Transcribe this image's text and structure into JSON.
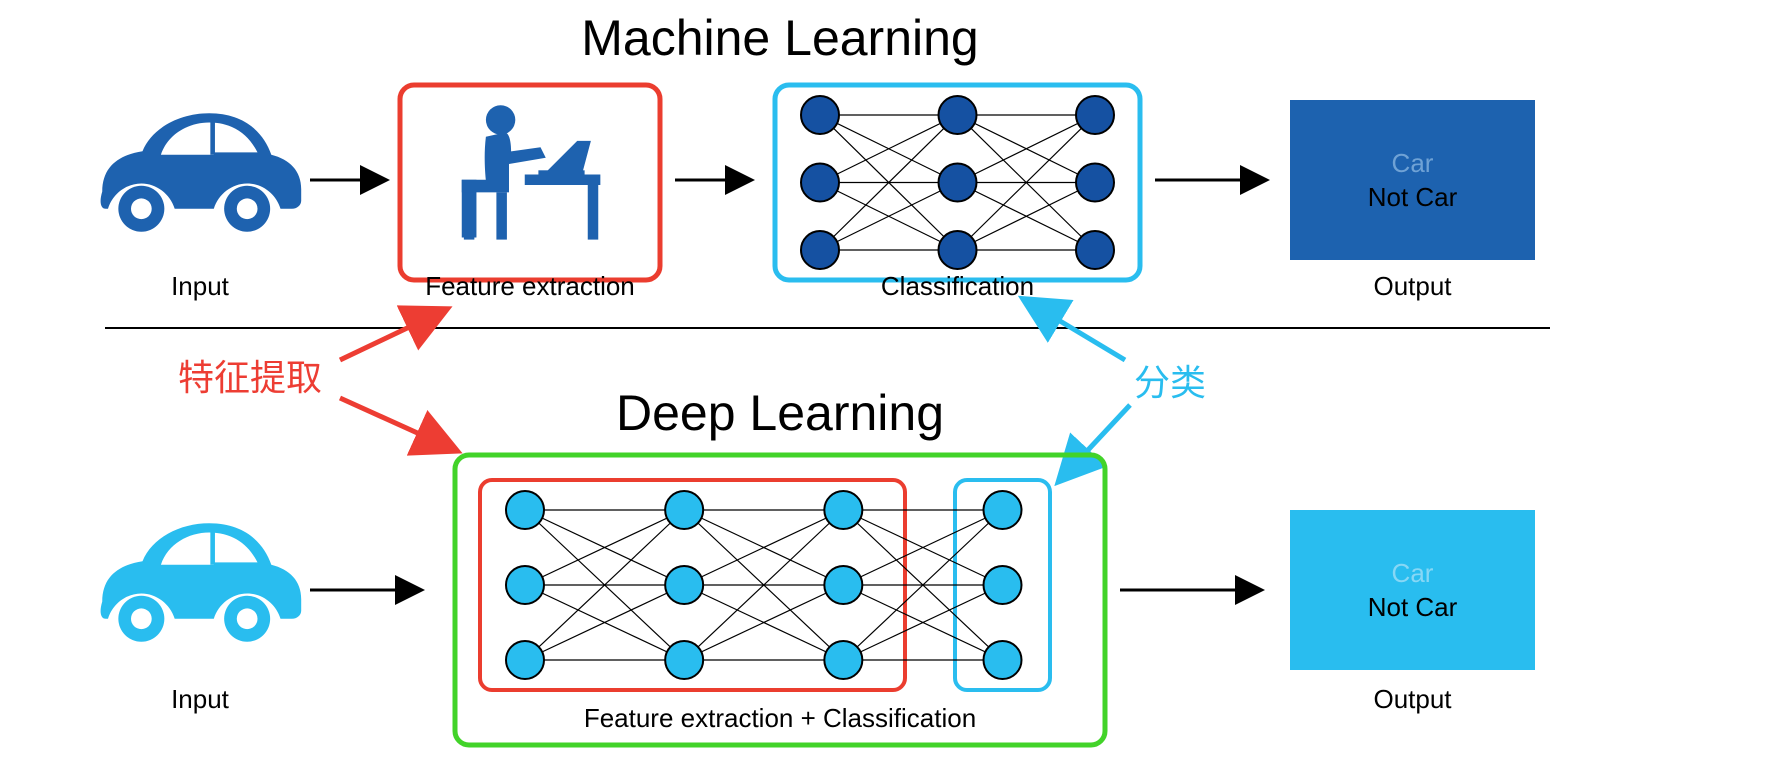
{
  "ml": {
    "title": "Machine Learning",
    "input_label": "Input",
    "feature_extraction_label": "Feature extraction",
    "classification_label": "Classification",
    "output_label": "Output",
    "output_line1": "Car",
    "output_line2": "Not Car",
    "car_color": "#1e62af",
    "net_node_color": "#1551a2",
    "output_box_color": "#1d62af",
    "output_text1_color": "#6fa2d5",
    "output_text2_color": "#000000",
    "feature_box_border": "#eb3d2f",
    "classification_box_border": "#2abdef",
    "box_border_width": 5,
    "box_border_radius": 14,
    "net_layers": 3,
    "net_nodes_per_layer": 3
  },
  "dl": {
    "title": "Deep Learning",
    "input_label": "Input",
    "combined_label": "Feature extraction + Classification",
    "output_label": "Output",
    "output_line1": "Car",
    "output_line2": "Not Car",
    "car_color": "#29bdef",
    "net_node_color": "#29bdef",
    "output_box_color": "#29bdef",
    "output_text1_color": "#87d7f5",
    "output_text2_color": "#000000",
    "combined_box_border": "#42d329",
    "inner_feature_border": "#eb3d2f",
    "inner_class_border": "#2abdef",
    "box_border_width": 5,
    "box_border_radius": 14,
    "net_layers": 4,
    "net_nodes_per_layer": 3
  },
  "annotations": {
    "feature_extraction_zh": "特征提取",
    "classification_zh": "分类",
    "feature_color": "#ed3d33",
    "classification_color": "#29bdef"
  },
  "title_fontsize": 50,
  "label_fontsize": 26,
  "output_fontsize": 26,
  "anno_fontsize": 36,
  "divider_color": "#000000",
  "divider_width": 2,
  "arrow_color": "#000000",
  "background_color": "#ffffff"
}
